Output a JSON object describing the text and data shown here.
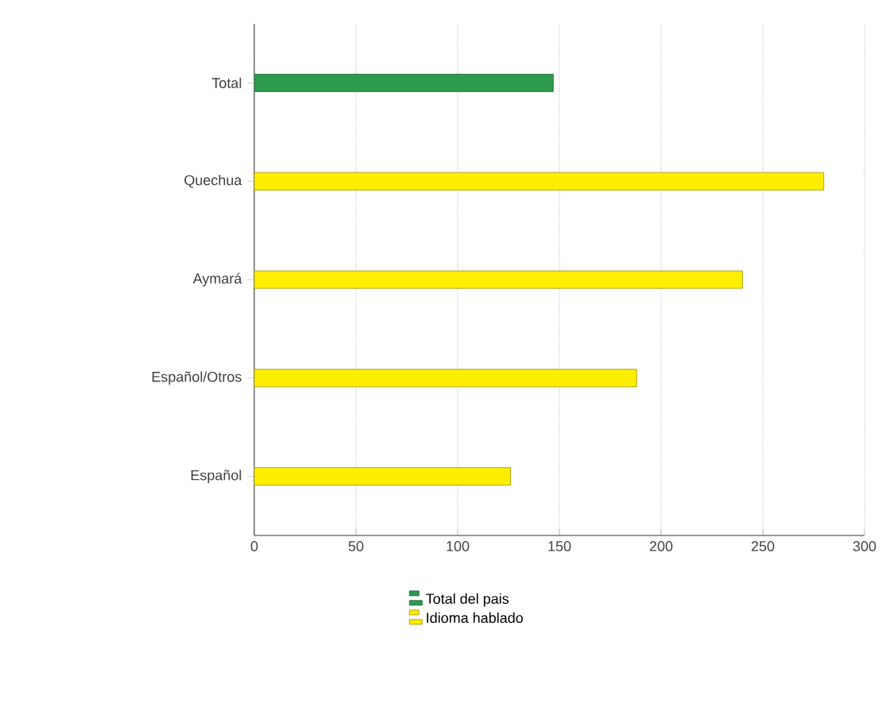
{
  "chart_data": {
    "type": "bar",
    "orientation": "horizontal",
    "categories": [
      "Total",
      "Quechua",
      "Aymará",
      "Español/Otros",
      "Español"
    ],
    "series": [
      {
        "name": "Total del pais",
        "color": "#2e9a4e",
        "values": [
          147,
          null,
          null,
          null,
          null
        ]
      },
      {
        "name": "Idioma hablado",
        "color": "#ffee00",
        "values": [
          null,
          280,
          240,
          188,
          126
        ]
      }
    ],
    "xlim": [
      0,
      300
    ],
    "xticks": [
      0,
      50,
      100,
      150,
      200,
      250,
      300
    ],
    "grid": "x",
    "legend": "bottom"
  }
}
